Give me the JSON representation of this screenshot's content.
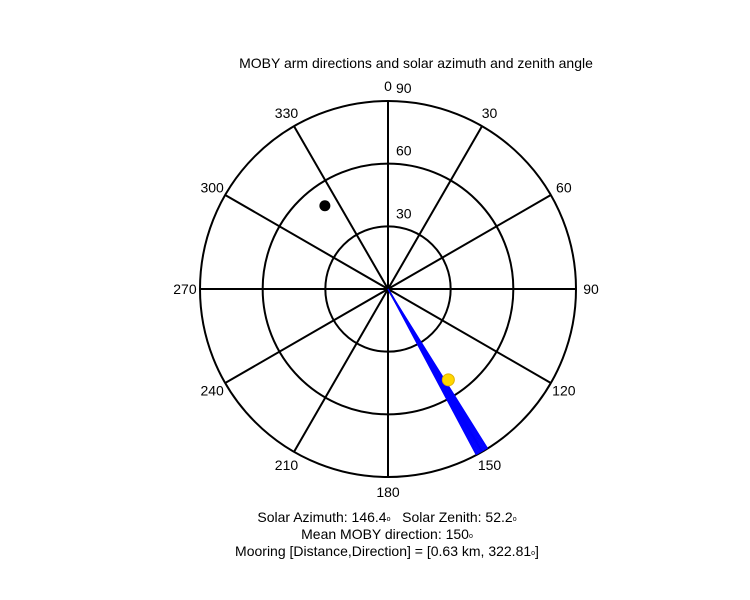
{
  "chart_data": {
    "type": "polar",
    "title": "MOBY arm directions and solar azimuth and zenith angle",
    "angle_ticks": [
      0,
      30,
      60,
      90,
      120,
      150,
      180,
      210,
      240,
      270,
      300,
      330
    ],
    "angle_tick_labels": [
      "0",
      "30",
      "60",
      "90",
      "120",
      "150",
      "180",
      "210",
      "240",
      "270",
      "300",
      "330"
    ],
    "radial_ticks": [
      30,
      60,
      90
    ],
    "radial_tick_labels": [
      "30",
      "60",
      "90"
    ],
    "rmax": 90,
    "orientation": "0 at top, clockwise",
    "arm_fan": {
      "color": "#0000ff",
      "direction_min": 148,
      "direction_max": 152,
      "length": 90
    },
    "sun": {
      "azimuth": 146.4,
      "zenith": 52.2,
      "color": "#ffd700"
    },
    "mooring_marker": {
      "direction": 322.81,
      "zenith": 50,
      "color": "#000000"
    }
  },
  "captions": {
    "solar_azimuth_label": "Solar Azimuth: 146.4",
    "solar_zenith_label": "Solar Zenith: 52.2",
    "mean_direction_label": "Mean MOBY direction: 150",
    "mooring_label": "Mooring [Distance,Direction] = [0.63 km, 322.81",
    "mooring_suffix": "]",
    "degree_symbol": "o"
  }
}
